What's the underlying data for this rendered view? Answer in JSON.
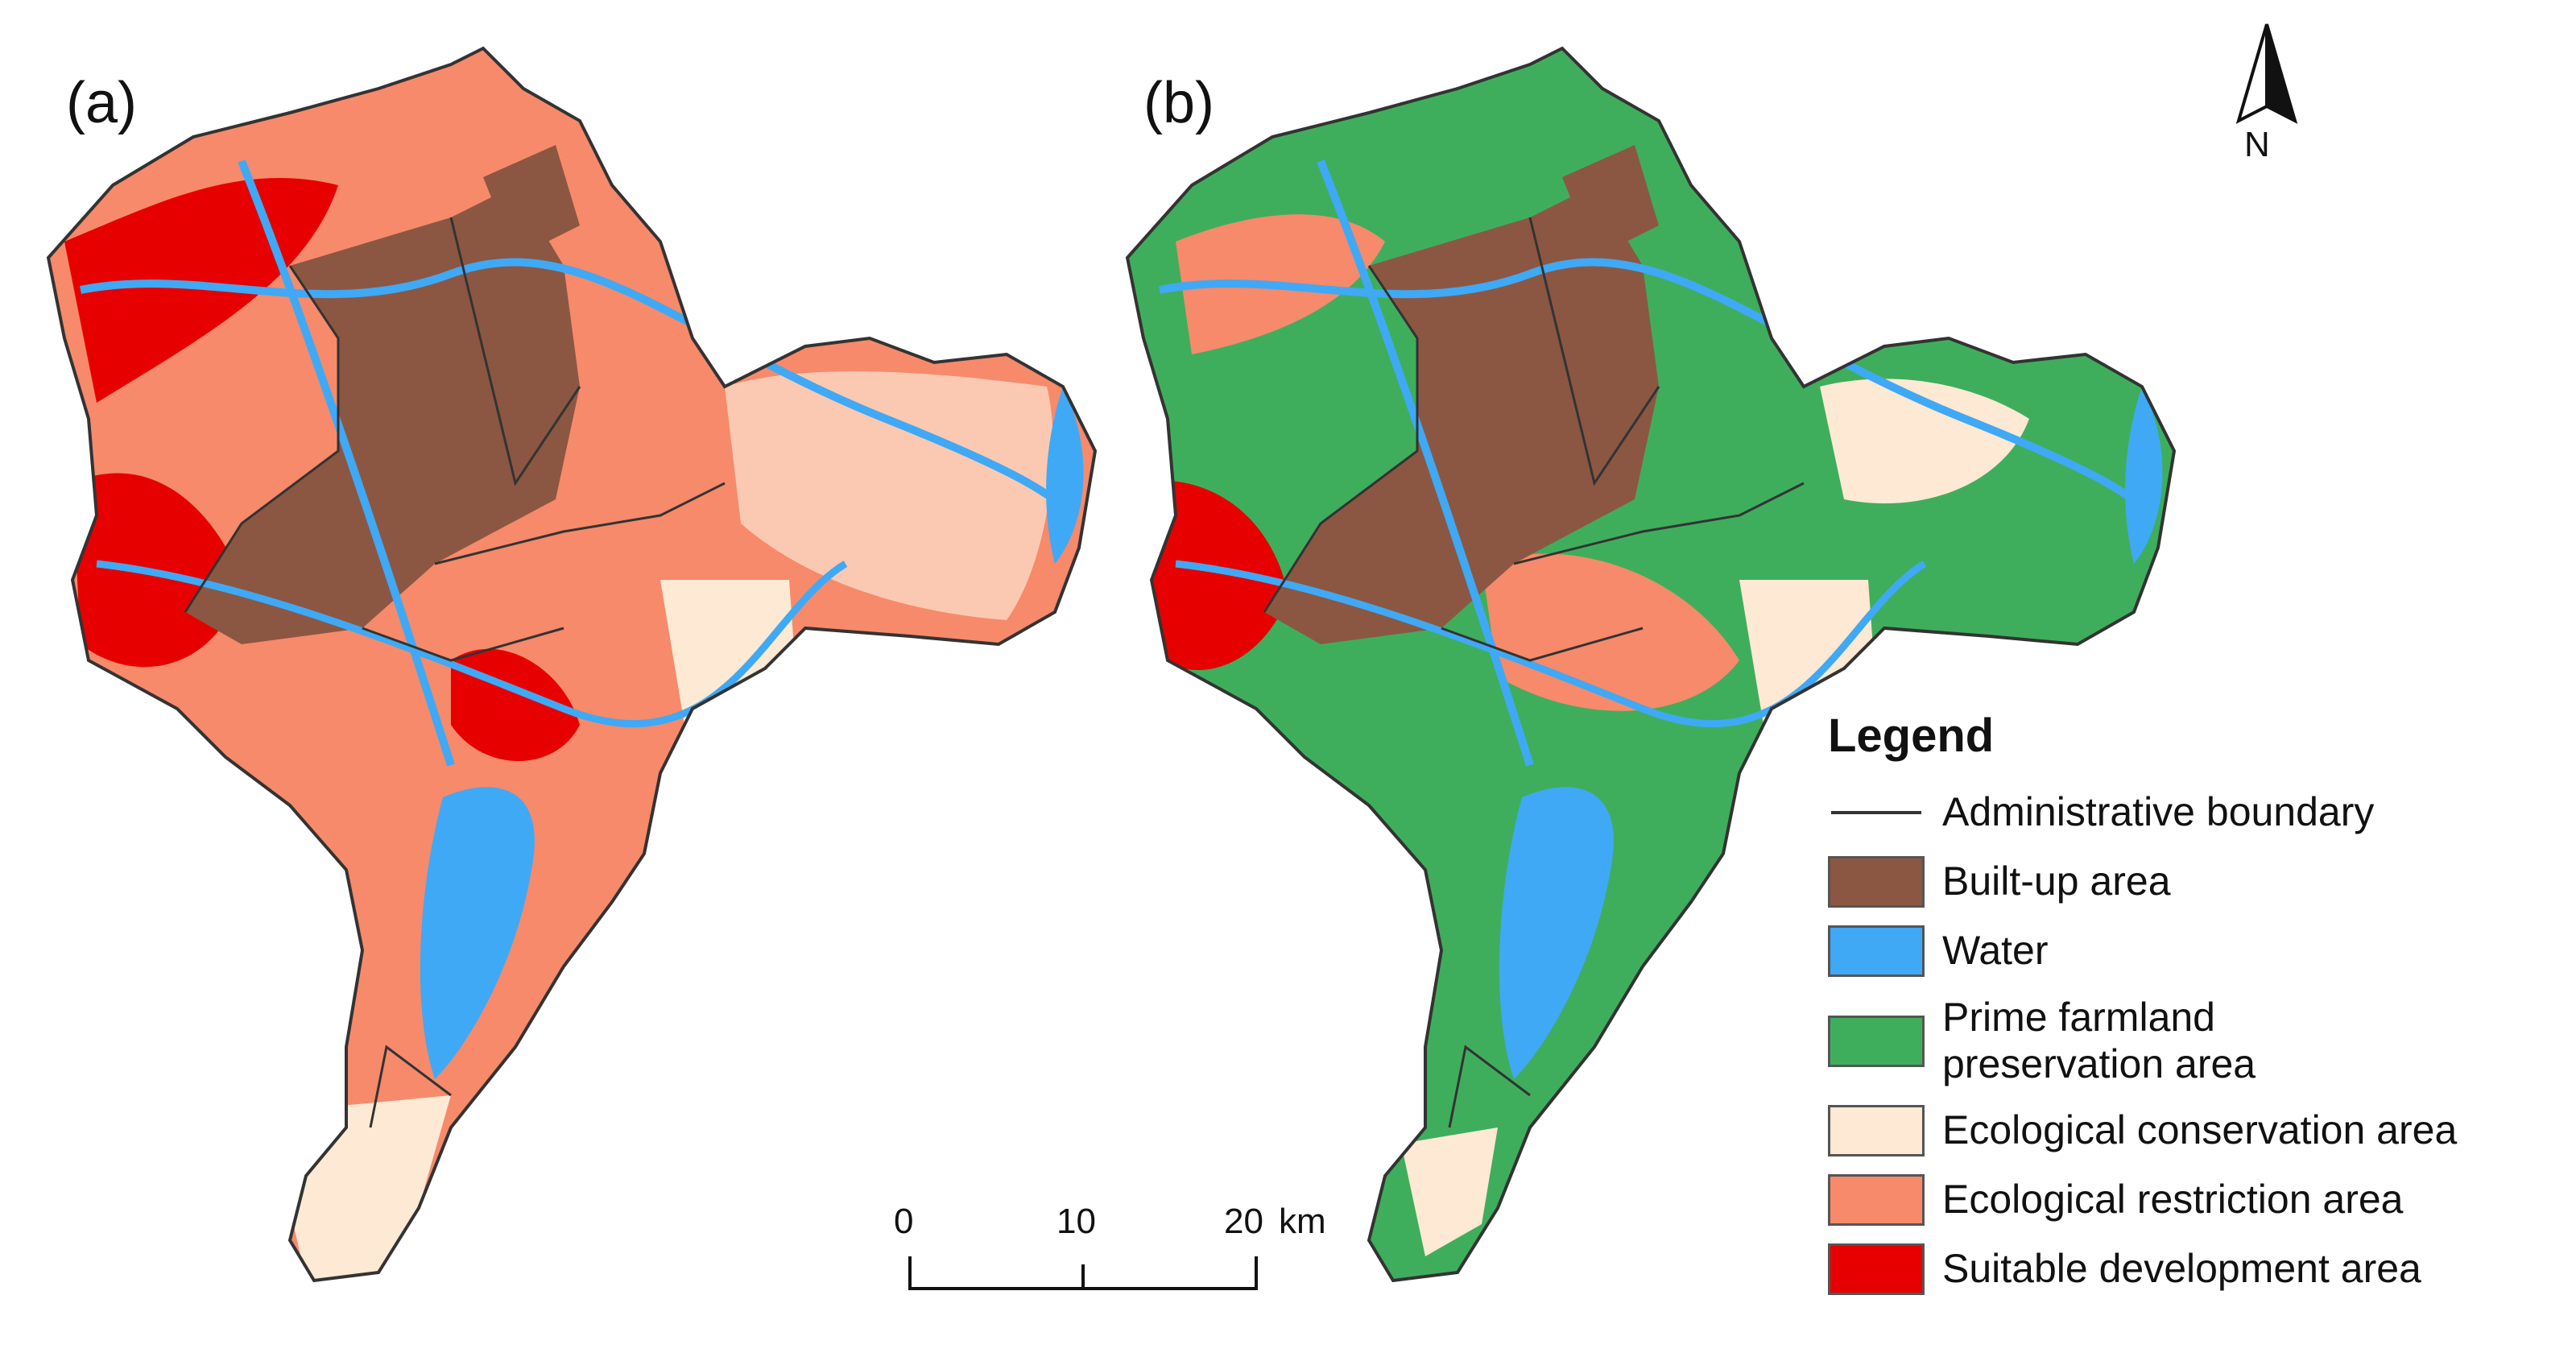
{
  "panels": [
    {
      "id": "a",
      "label": "(a)"
    },
    {
      "id": "b",
      "label": "(b)"
    }
  ],
  "north_arrow": {
    "letter": "N"
  },
  "scale_bar": {
    "ticks": [
      "0",
      "10",
      "20"
    ],
    "unit": "km"
  },
  "legend": {
    "title": "Legend",
    "items": [
      {
        "label": "Administrative boundary",
        "kind": "line",
        "color": "#333333"
      },
      {
        "label": "Built-up area",
        "kind": "fill",
        "color": "#8b5742"
      },
      {
        "label": "Water",
        "kind": "fill",
        "color": "#3fa9f5"
      },
      {
        "label": "Prime farmland preservation area",
        "kind": "fill",
        "color": "#3fae5c"
      },
      {
        "label": "Ecological conservation area",
        "kind": "fill",
        "color": "#fde9d4"
      },
      {
        "label": "Ecological restriction area",
        "kind": "fill",
        "color": "#f68a6b"
      },
      {
        "label": "Suitable development area",
        "kind": "fill",
        "color": "#e60000"
      }
    ]
  }
}
